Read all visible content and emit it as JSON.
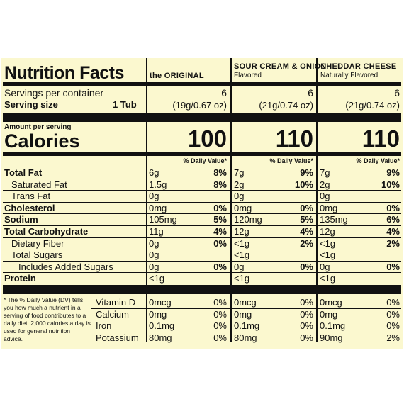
{
  "header": {
    "title": "Nutrition Facts",
    "columns": [
      {
        "name": "the ORIGINAL",
        "sub": ""
      },
      {
        "name": "SOUR CREAM & ONION",
        "sub": "Flavored"
      },
      {
        "name": "CHEDDAR CHEESE",
        "sub": "Naturally Flavored"
      }
    ]
  },
  "servings": {
    "per_container_label": "Servings per container",
    "size_label": "Serving size",
    "size_unit": "1 Tub",
    "per_container": [
      "6",
      "6",
      "6"
    ],
    "sizes": [
      "(19g/0.67 oz)",
      "(21g/0.74 oz)",
      "(21g/0.74 oz)"
    ]
  },
  "calories": {
    "amount_label": "Amount per serving",
    "label": "Calories",
    "values": [
      "100",
      "110",
      "110"
    ],
    "dv_header": "% Daily Value*"
  },
  "nutrients": [
    {
      "label": "Total Fat",
      "vals": [
        [
          "6g",
          "8%"
        ],
        [
          "7g",
          "9%"
        ],
        [
          "7g",
          "9%"
        ]
      ]
    },
    {
      "label": "Saturated Fat",
      "vals": [
        [
          "1.5g",
          "8%"
        ],
        [
          "2g",
          "10%"
        ],
        [
          "2g",
          "10%"
        ]
      ]
    },
    {
      "label": "Trans Fat",
      "vals": [
        [
          "0g",
          ""
        ],
        [
          "0g",
          ""
        ],
        [
          "0g",
          ""
        ]
      ]
    },
    {
      "label": "Cholesterol",
      "vals": [
        [
          "0mg",
          "0%"
        ],
        [
          "0mg",
          "0%"
        ],
        [
          "0mg",
          "0%"
        ]
      ]
    },
    {
      "label": "Sodium",
      "vals": [
        [
          "105mg",
          "5%"
        ],
        [
          "120mg",
          "5%"
        ],
        [
          "135mg",
          "6%"
        ]
      ]
    },
    {
      "label": "Total Carbohydrate",
      "vals": [
        [
          "11g",
          "4%"
        ],
        [
          "12g",
          "4%"
        ],
        [
          "12g",
          "4%"
        ]
      ]
    },
    {
      "label": "Dietary Fiber",
      "vals": [
        [
          "0g",
          "0%"
        ],
        [
          "<1g",
          "2%"
        ],
        [
          "<1g",
          "2%"
        ]
      ]
    },
    {
      "label": "Total Sugars",
      "vals": [
        [
          "0g",
          ""
        ],
        [
          "<1g",
          ""
        ],
        [
          "<1g",
          ""
        ]
      ]
    },
    {
      "label": "Includes Added Sugars",
      "vals": [
        [
          "0g",
          "0%"
        ],
        [
          "0g",
          "0%"
        ],
        [
          "0g",
          "0%"
        ]
      ]
    },
    {
      "label": "Protein",
      "vals": [
        [
          "<1g",
          ""
        ],
        [
          "<1g",
          ""
        ],
        [
          "<1g",
          ""
        ]
      ]
    }
  ],
  "footnote": "* The % Daily Value (DV) tells you how much a nutrient in a serving of food contributes to a daily diet. 2,000 calories a day is used for general nutrition advice.",
  "vitamins": [
    {
      "label": "Vitamin D",
      "vals": [
        [
          "0mcg",
          "0%"
        ],
        [
          "0mcg",
          "0%"
        ],
        [
          "0mcg",
          "0%"
        ]
      ]
    },
    {
      "label": "Calcium",
      "vals": [
        [
          "0mg",
          "0%"
        ],
        [
          "0mg",
          "0%"
        ],
        [
          "0mg",
          "0%"
        ]
      ]
    },
    {
      "label": "Iron",
      "vals": [
        [
          "0.1mg",
          "0%"
        ],
        [
          "0.1mg",
          "0%"
        ],
        [
          "0.1mg",
          "0%"
        ]
      ]
    },
    {
      "label": "Potassium",
      "vals": [
        [
          "80mg",
          "0%"
        ],
        [
          "80mg",
          "0%"
        ],
        [
          "90mg",
          "2%"
        ]
      ]
    }
  ]
}
